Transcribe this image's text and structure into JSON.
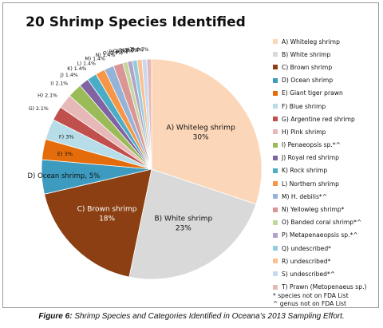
{
  "chart_data": {
    "type": "pie",
    "title": "20 Shrimp Species Identified",
    "slices": [
      {
        "legend": "A) Whiteleg shrimp",
        "slice_label": "A) Whiteleg shrimp, 30%",
        "value": 30,
        "color": "#fbd6b8"
      },
      {
        "legend": "B) White shrimp",
        "slice_label": "B) White shrimp, 23%",
        "value": 23,
        "color": "#d9d9d9"
      },
      {
        "legend": "C) Brown shrimp",
        "slice_label": "C) Brown shrimp, 18%",
        "value": 18,
        "color": "#8b3f12"
      },
      {
        "legend": "D) Ocean shrimp",
        "slice_label": "D) Ocean shrimp, 5%",
        "value": 5,
        "color": "#3d9bc0"
      },
      {
        "legend": "E) Giant tiger prawn",
        "slice_label": "E) 3%",
        "value": 3,
        "color": "#e46c0a"
      },
      {
        "legend": "F) Blue shrimp",
        "slice_label": "F) 3%",
        "value": 3,
        "color": "#b7dee8"
      },
      {
        "legend": "G) Argentine red shrimp",
        "slice_label": "G) 2.1%",
        "value": 2.1,
        "color": "#c0504d"
      },
      {
        "legend": "H) Pink shrimp",
        "slice_label": "H) 2.1%",
        "value": 2.1,
        "color": "#e6b9b8"
      },
      {
        "legend": "I) Penaeopsis sp.*^",
        "slice_label": "I) 2.1%",
        "value": 2.1,
        "color": "#9bbb59"
      },
      {
        "legend": "J) Royal red shrimp",
        "slice_label": "J) 1.4%",
        "value": 1.4,
        "color": "#8064a2"
      },
      {
        "legend": "K) Rock shrimp",
        "slice_label": "K) 1.4%",
        "value": 1.4,
        "color": "#4bacc6"
      },
      {
        "legend": "L) Northern shrimp",
        "slice_label": "L) 1.4%",
        "value": 1.4,
        "color": "#f79646"
      },
      {
        "legend": "M) H. debilis*^",
        "slice_label": "M) 1.4%",
        "value": 1.4,
        "color": "#95b3d7"
      },
      {
        "legend": "N) Yellowleg shrimp*",
        "slice_label": "N) 1.4%",
        "value": 1.4,
        "color": "#d99694"
      },
      {
        "legend": "O) Banded coral shrimp*^",
        "slice_label": "O) 0.7%",
        "value": 0.7,
        "color": "#c3d69b"
      },
      {
        "legend": "P) Metapenaeopsis sp.*^",
        "slice_label": "P) 0.7%",
        "value": 0.7,
        "color": "#b3a2c7"
      },
      {
        "legend": "Q) undescribed*",
        "slice_label": "Q) 0.7%",
        "value": 0.7,
        "color": "#93cddd"
      },
      {
        "legend": "R) undescribed*",
        "slice_label": "R) 0.7%",
        "value": 0.7,
        "color": "#fac090"
      },
      {
        "legend": "S) undescribed*^",
        "slice_label": "S) 0.7%",
        "value": 0.7,
        "color": "#c6d9f1"
      },
      {
        "legend": "T) Prawn (Metopenaeus sp.)",
        "slice_label": "T) 0.7%",
        "value": 0.7,
        "color": "#e6b9b8"
      }
    ],
    "legend_position": "right"
  },
  "notes": [
    "* species not on FDA List",
    "^ genus not on FDA  List"
  ],
  "caption": {
    "label": "Figure 6:",
    "text": " Shrimp Species and Categories Identified in Oceana’s 2013 Sampling Effort."
  }
}
